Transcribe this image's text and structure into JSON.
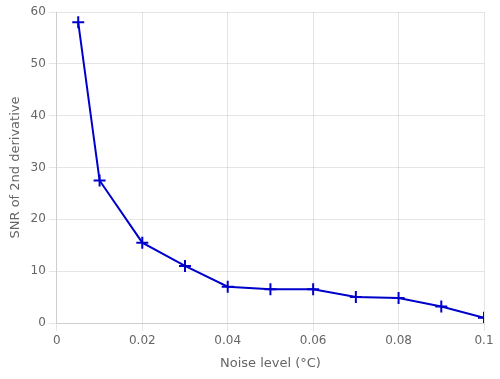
{
  "chart_data": {
    "type": "line",
    "x": [
      0.005,
      0.01,
      0.02,
      0.03,
      0.04,
      0.05,
      0.06,
      0.07,
      0.08,
      0.09,
      0.1
    ],
    "values": [
      58.0,
      27.5,
      15.5,
      11.0,
      7.0,
      6.5,
      6.5,
      5.0,
      4.8,
      3.2,
      1.0
    ],
    "color": "#0000cc",
    "marker": "plus",
    "xlabel": "Noise level (°C)",
    "ylabel": "SNR of 2nd derivative",
    "xlim": [
      0,
      0.1
    ],
    "ylim": [
      0,
      60
    ],
    "xticks": [
      0,
      0.02,
      0.04,
      0.06,
      0.08,
      0.1
    ],
    "yticks": [
      0,
      10,
      20,
      30,
      40,
      50,
      60
    ],
    "grid": true
  }
}
